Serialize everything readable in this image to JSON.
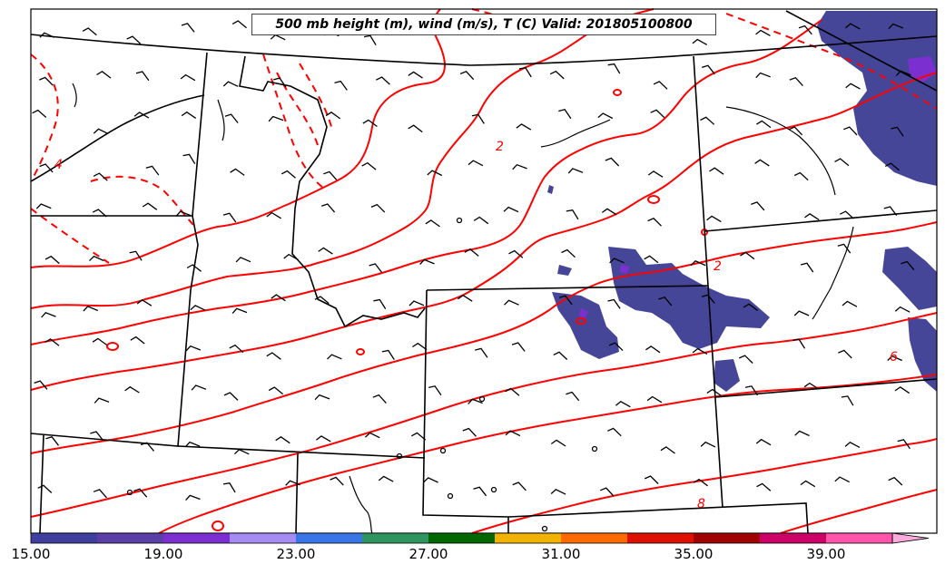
{
  "title": "500 mb height (m), wind (m/s), T (C) Valid: 201805100800",
  "colorbar": {
    "tick_labels": [
      "15.00",
      "19.00",
      "23.00",
      "27.00",
      "31.00",
      "35.00",
      "39.00"
    ],
    "colors": [
      "#3f3f9f",
      "#5a3fa8",
      "#7b2fd1",
      "#a58cf5",
      "#3a75e8",
      "#2e9460",
      "#006600",
      "#f2b200",
      "#ff6a00",
      "#e01000",
      "#a00000",
      "#cc0066",
      "#ff55aa",
      "#ffaadd"
    ]
  },
  "contour_labels": [
    "2",
    "4",
    "6",
    "8"
  ],
  "colors": {
    "temperature_contour": "#ff0000",
    "fill_low": "#3f3f9f",
    "boundaries": "#000000"
  }
}
